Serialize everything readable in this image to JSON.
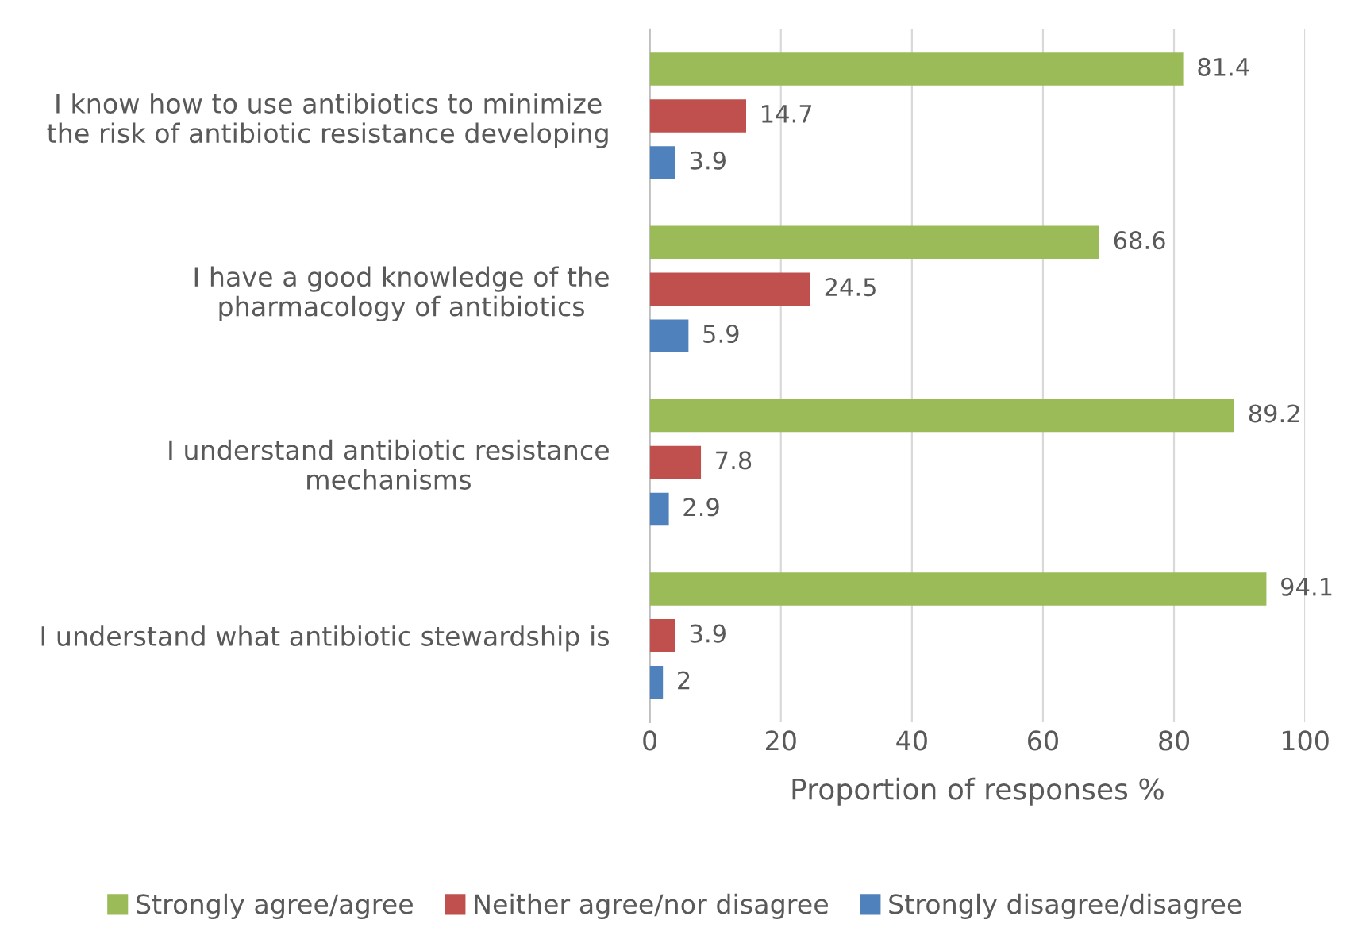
{
  "chart_data": {
    "type": "bar",
    "orientation": "horizontal",
    "categories": [
      "I know how to use antibiotics to minimize\nthe risk of antibiotic resistance developing",
      "I have a good knowledge of the\npharmacology of antibiotics",
      "I understand antibiotic resistance\nmechanisms",
      "I understand what antibiotic stewardship is"
    ],
    "series": [
      {
        "name": "Strongly agree/agree",
        "color": "#9bbb59",
        "values": [
          81.4,
          68.6,
          89.2,
          94.1
        ]
      },
      {
        "name": "Neither agree/nor disagree",
        "color": "#c0504d",
        "values": [
          14.7,
          24.5,
          7.8,
          3.9
        ]
      },
      {
        "name": "Strongly disagree/disagree",
        "color": "#4f81bd",
        "values": [
          3.9,
          5.9,
          2.9,
          2
        ]
      }
    ],
    "xlabel": "Proportion of responses %",
    "xlim": [
      0,
      100
    ],
    "xticks": [
      0,
      20,
      40,
      60,
      80,
      100
    ],
    "grid": "x",
    "legend": "bottom",
    "data_labels": true
  }
}
